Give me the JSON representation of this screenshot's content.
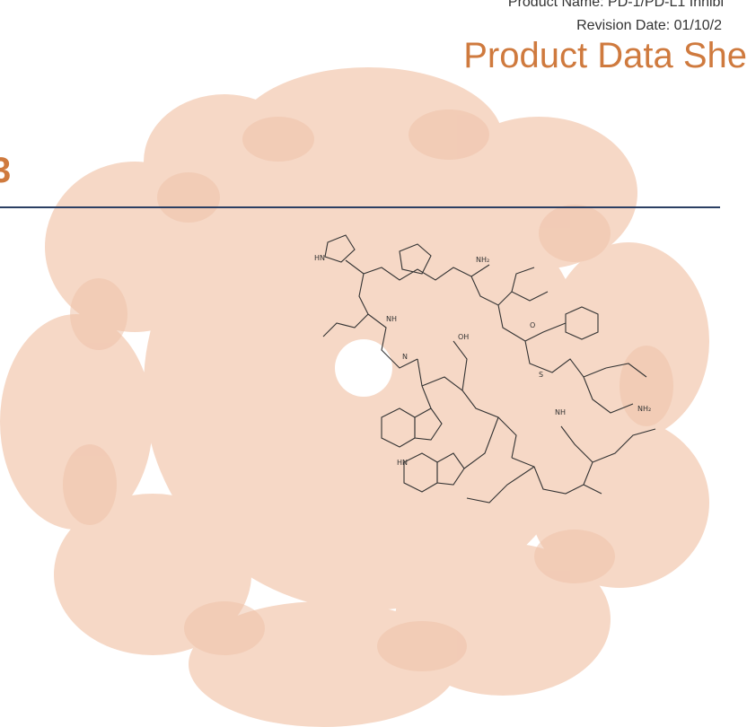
{
  "header": {
    "product_name": "Product Name: PD-1/PD-L1 Inhibi",
    "revision_date": "Revision Date: 01/10/2",
    "title": "Product Data She"
  },
  "catalog_fragment": "3",
  "structure_labels": [
    "HN",
    "N",
    "NH",
    "NH₂",
    "O",
    "OH",
    "S",
    "HN",
    "NH",
    "NH₂"
  ],
  "colors": {
    "title": "#cf7a3e",
    "watermark": "#f6d8c6",
    "divider": "#2b3f63",
    "text": "#333333"
  }
}
